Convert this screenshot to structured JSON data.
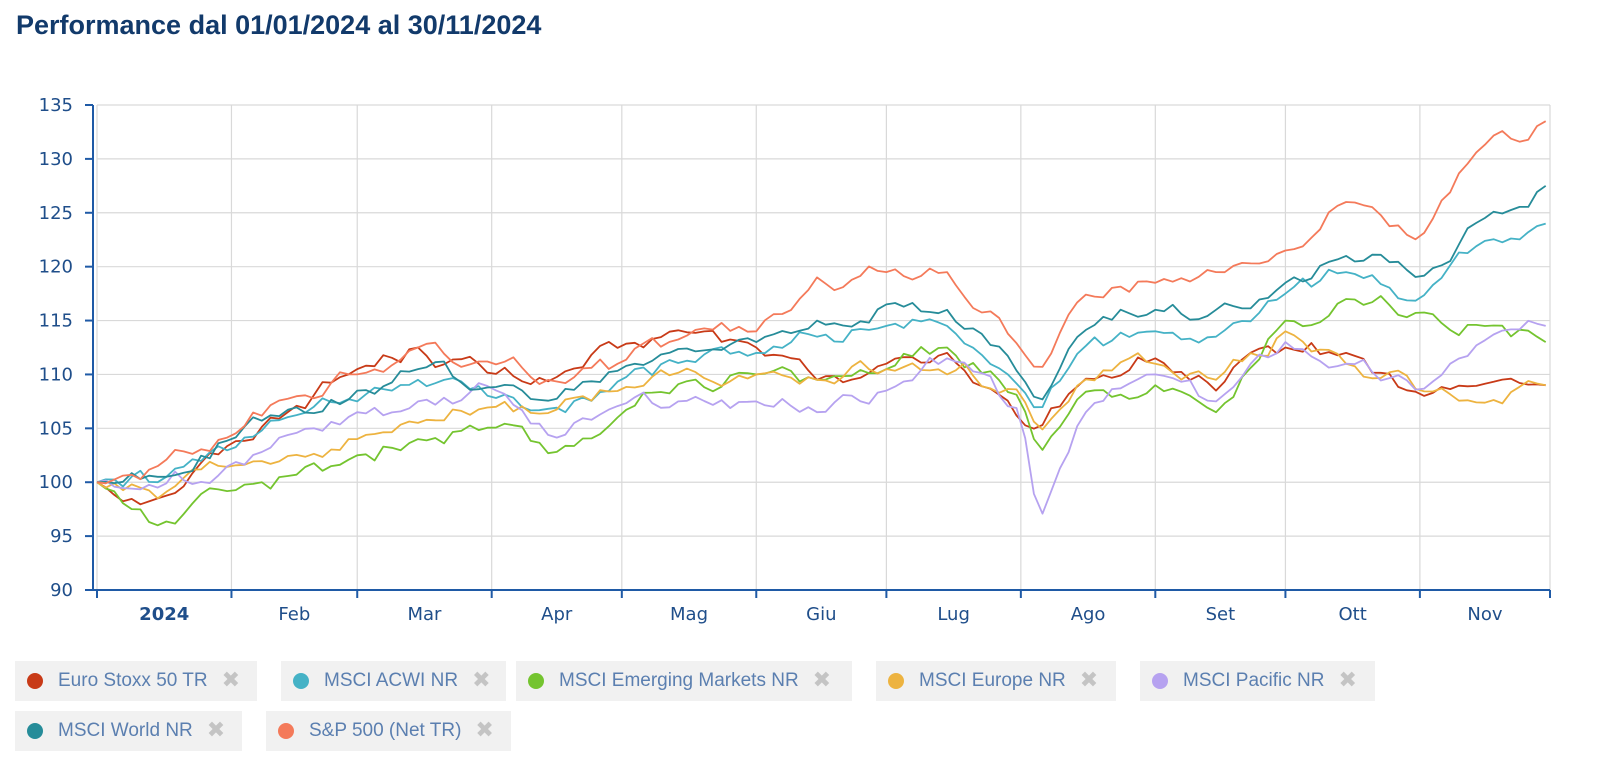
{
  "header": {
    "title": "Performance dal 01/01/2024 al 30/11/2024"
  },
  "colors": {
    "axis": "#1f5aa6",
    "grid": "#d9d9d9",
    "tick_text": "#1f4e8a"
  },
  "chart_data": {
    "type": "line",
    "ylim": [
      90,
      135
    ],
    "y_ticks": [
      "135",
      "130",
      "125",
      "120",
      "115",
      "110",
      "105",
      "100",
      "95",
      "90"
    ],
    "x_ticks": [
      "2024",
      "Feb",
      "Mar",
      "Apr",
      "Mag",
      "Giu",
      "Lug",
      "Ago",
      "Set",
      "Ott",
      "Nov"
    ],
    "x_dates": [
      "2024-01-01",
      "2024-01-15",
      "2024-02-01",
      "2024-02-15",
      "2024-03-01",
      "2024-03-15",
      "2024-04-01",
      "2024-04-15",
      "2024-05-01",
      "2024-05-15",
      "2024-06-01",
      "2024-06-15",
      "2024-07-01",
      "2024-07-15",
      "2024-08-01",
      "2024-08-05",
      "2024-08-15",
      "2024-09-01",
      "2024-09-15",
      "2024-10-01",
      "2024-10-15",
      "2024-11-01",
      "2024-11-15",
      "2024-11-30"
    ],
    "grid": true,
    "legend_position": "bottom",
    "series": [
      {
        "name": "Euro Stoxx 50 TR",
        "color": "#c83a17",
        "values": [
          100,
          98.5,
          103.5,
          107,
          110.5,
          112.5,
          110,
          109.5,
          112.5,
          114,
          112.5,
          109.5,
          111,
          112,
          105.5,
          104.5,
          109.5,
          111.5,
          108.5,
          112.5,
          112,
          108,
          109,
          109
        ]
      },
      {
        "name": "MSCI ACWI NR",
        "color": "#45b2c6",
        "values": [
          100,
          100,
          103,
          106,
          107.5,
          109.5,
          108,
          107,
          109.5,
          111,
          112,
          113.5,
          114.5,
          114.5,
          109,
          106,
          112.5,
          114,
          113.5,
          117.5,
          119.5,
          117,
          122.5,
          124
        ]
      },
      {
        "name": "MSCI Emerging Markets NR",
        "color": "#74c42f",
        "values": [
          100,
          96,
          99,
          100.5,
          102.5,
          104,
          105,
          102.5,
          106.5,
          109.5,
          110,
          109.5,
          110.5,
          112.5,
          108,
          102.5,
          108.5,
          109,
          106.5,
          115,
          117,
          116,
          114.5,
          113
        ]
      },
      {
        "name": "MSCI Europe NR",
        "color": "#edb340",
        "values": [
          100,
          98.5,
          101.5,
          102.5,
          104,
          105.5,
          107,
          106.5,
          108.5,
          110.5,
          110,
          109.5,
          110.5,
          110,
          108.5,
          104.5,
          109.5,
          111,
          109.5,
          114,
          111,
          108.5,
          107.5,
          109
        ]
      },
      {
        "name": "MSCI Pacific NR",
        "color": "#b6a2f0",
        "values": [
          100,
          99.5,
          102,
          104.5,
          106.5,
          107.5,
          109,
          104,
          107,
          107.5,
          107.5,
          106.5,
          108.5,
          111.5,
          106.5,
          96,
          106.5,
          110,
          107.5,
          113,
          111,
          108.5,
          113,
          114.5
        ]
      },
      {
        "name": "MSCI World NR",
        "color": "#268c99",
        "values": [
          100,
          100.5,
          104,
          107,
          108.5,
          110.5,
          109,
          107.5,
          110.5,
          112.5,
          113,
          115,
          116.5,
          116,
          110,
          107,
          114,
          116,
          116,
          118.5,
          121,
          119,
          124.5,
          127.5
        ]
      },
      {
        "name": "S&P 500 (Net TR)",
        "color": "#f47a5a",
        "values": [
          100,
          101.5,
          104.5,
          108,
          110,
          112.5,
          111,
          109.5,
          111,
          113.5,
          114,
          119,
          119.5,
          119.5,
          112.5,
          110,
          117.5,
          118.5,
          119.5,
          121.5,
          126,
          122.5,
          131,
          133.5
        ]
      }
    ]
  },
  "legend": {
    "remove_symbol": "✖",
    "items": [
      {
        "label": "Euro Stoxx 50 TR",
        "color": "#c83a17"
      },
      {
        "label": "MSCI ACWI NR",
        "color": "#45b2c6"
      },
      {
        "label": "MSCI Emerging Markets NR",
        "color": "#74c42f"
      },
      {
        "label": "MSCI Europe NR",
        "color": "#edb340"
      },
      {
        "label": "MSCI Pacific NR",
        "color": "#b6a2f0"
      },
      {
        "label": "MSCI World NR",
        "color": "#268c99"
      },
      {
        "label": "S&P 500 (Net TR)",
        "color": "#f47a5a"
      }
    ]
  }
}
